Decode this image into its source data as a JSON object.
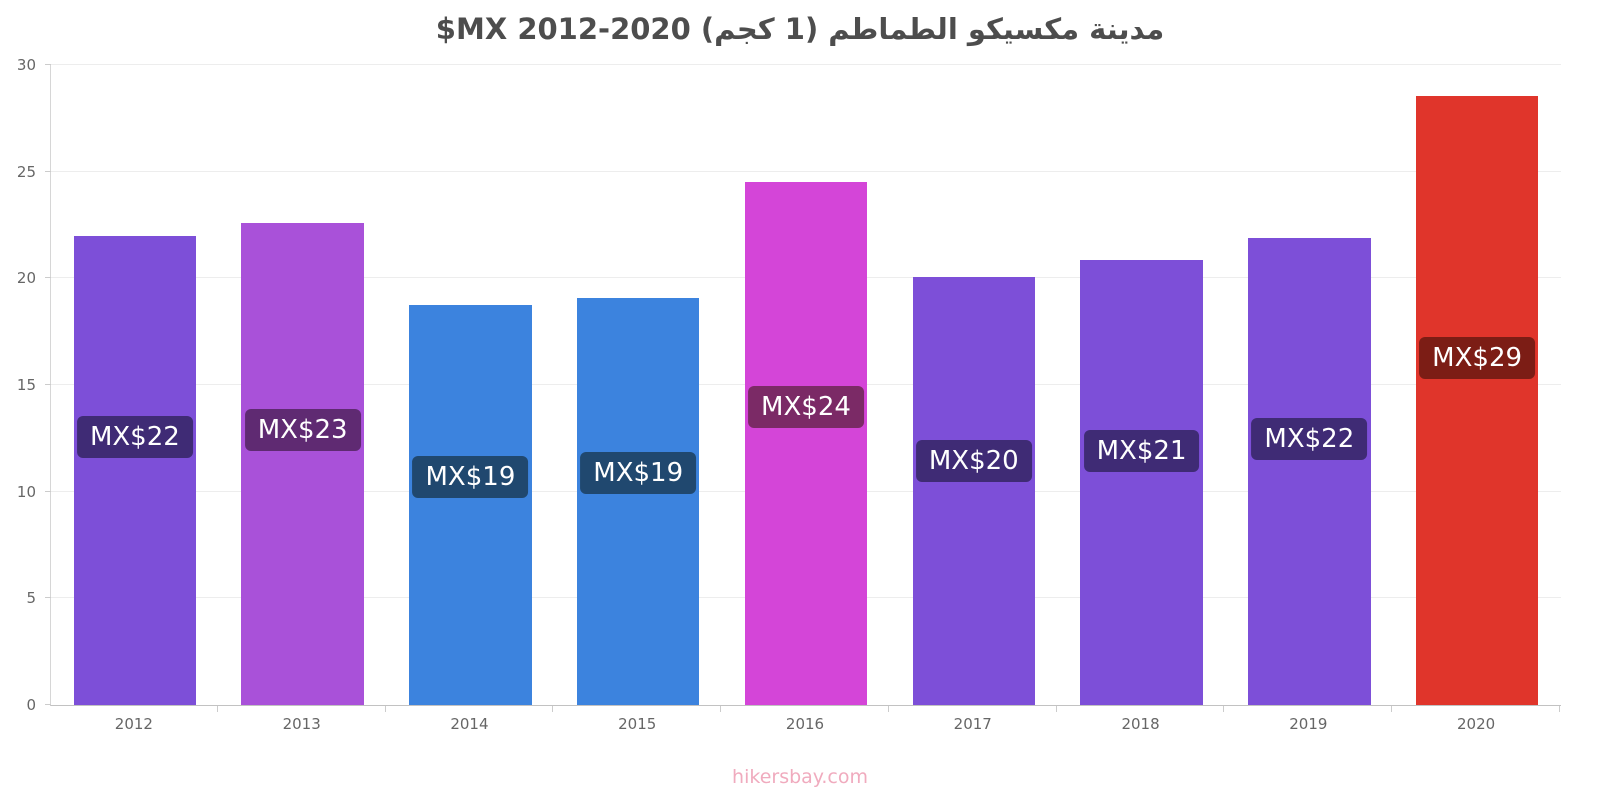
{
  "chart_data": {
    "type": "bar",
    "title": "مدينة مكسيكو الطماطم (1 كجم) 2020-2012 MX$",
    "footer": "hikersbay.com",
    "categories": [
      "2012",
      "2013",
      "2014",
      "2015",
      "2016",
      "2017",
      "2018",
      "2019",
      "2020"
    ],
    "values": [
      22.0,
      22.6,
      18.75,
      19.1,
      24.5,
      20.05,
      20.85,
      21.9,
      28.55
    ],
    "labels": [
      "MX$22",
      "MX$23",
      "MX$19",
      "MX$19",
      "MX$24",
      "MX$20",
      "MX$21",
      "MX$22",
      "MX$29"
    ],
    "bar_colors": [
      "#7d4fd8",
      "#a951d9",
      "#3c83de",
      "#3c83de",
      "#d445d8",
      "#7d4fd8",
      "#7d4fd8",
      "#7d4fd8",
      "#e0352b"
    ],
    "label_bg_colors": [
      "#3f2b75",
      "#5f2a72",
      "#20486f",
      "#20486f",
      "#7b2a66",
      "#3f2b75",
      "#3f2b75",
      "#3f2b75",
      "#7c1d15"
    ],
    "xlabel": "",
    "ylabel": "",
    "ylim": [
      0,
      30
    ],
    "yticks": [
      0,
      5,
      10,
      15,
      20,
      25,
      30
    ],
    "grid": true,
    "legend": false
  },
  "colors": {
    "grid": "#ededed",
    "axis": "#d6d6d6",
    "tick_text": "#666666",
    "title_text": "#4d4d4d",
    "footer_text": "#f0abbe",
    "label_text": "#ffffff"
  }
}
